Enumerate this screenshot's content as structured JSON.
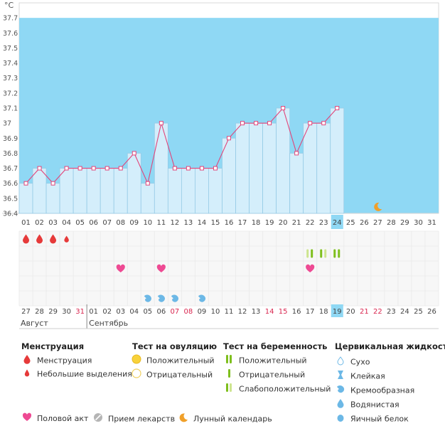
{
  "chart_data": {
    "type": "bar",
    "unit_label": "°C",
    "y_ticks": [
      "36.4",
      "36.5",
      "36.6",
      "36.7",
      "36.8",
      "36.9",
      "37",
      "37.1",
      "37.2",
      "37.3",
      "37.4",
      "37.5",
      "37.6",
      "37.7"
    ],
    "ylim": [
      36.4,
      37.8
    ],
    "coverline_range": [
      36.4,
      37.7
    ],
    "cycle_days": [
      "01",
      "02",
      "03",
      "04",
      "05",
      "06",
      "07",
      "08",
      "09",
      "10",
      "11",
      "12",
      "13",
      "14",
      "15",
      "16",
      "17",
      "18",
      "19",
      "20",
      "21",
      "22",
      "23",
      "24",
      "25",
      "26",
      "27",
      "28",
      "29",
      "30",
      "31"
    ],
    "temperatures": [
      36.6,
      36.7,
      36.6,
      36.7,
      36.7,
      36.7,
      36.7,
      36.7,
      36.8,
      36.6,
      37.0,
      36.7,
      36.7,
      36.7,
      36.7,
      36.9,
      37.0,
      37.0,
      37.0,
      37.1,
      36.8,
      37.0,
      37.0,
      37.1,
      null,
      null,
      null,
      null,
      null,
      null,
      null
    ],
    "current_day_index": 23,
    "dates": [
      {
        "label": "27",
        "weekend": false
      },
      {
        "label": "28",
        "weekend": false
      },
      {
        "label": "29",
        "weekend": false
      },
      {
        "label": "30",
        "weekend": false
      },
      {
        "label": "31",
        "weekend": true
      },
      {
        "label": "01",
        "weekend": false
      },
      {
        "label": "02",
        "weekend": false
      },
      {
        "label": "03",
        "weekend": false
      },
      {
        "label": "04",
        "weekend": false
      },
      {
        "label": "05",
        "weekend": false
      },
      {
        "label": "06",
        "weekend": false
      },
      {
        "label": "07",
        "weekend": true
      },
      {
        "label": "08",
        "weekend": true
      },
      {
        "label": "09",
        "weekend": false
      },
      {
        "label": "10",
        "weekend": false
      },
      {
        "label": "11",
        "weekend": false
      },
      {
        "label": "12",
        "weekend": false
      },
      {
        "label": "13",
        "weekend": false
      },
      {
        "label": "14",
        "weekend": true
      },
      {
        "label": "15",
        "weekend": true
      },
      {
        "label": "16",
        "weekend": false
      },
      {
        "label": "17",
        "weekend": false
      },
      {
        "label": "18",
        "weekend": false
      },
      {
        "label": "19",
        "weekend": false
      },
      {
        "label": "20",
        "weekend": false
      },
      {
        "label": "21",
        "weekend": true
      },
      {
        "label": "22",
        "weekend": true
      },
      {
        "label": "23",
        "weekend": false
      },
      {
        "label": "24",
        "weekend": false
      },
      {
        "label": "25",
        "weekend": false
      },
      {
        "label": "26",
        "weekend": false
      }
    ],
    "month_labels": [
      {
        "label": "Август",
        "start_index": 0
      },
      {
        "label": "Сентябрь",
        "start_index": 5
      }
    ],
    "menstruation": [
      {
        "index": 0,
        "type": "full"
      },
      {
        "index": 1,
        "type": "full"
      },
      {
        "index": 2,
        "type": "full"
      },
      {
        "index": 3,
        "type": "light"
      }
    ],
    "ovulation_tests": [],
    "pregnancy_tests": [
      {
        "index": 21,
        "types": [
          "weak",
          "positive"
        ]
      },
      {
        "index": 22,
        "types": [
          "positive",
          "weak"
        ]
      },
      {
        "index": 23,
        "types": [
          "positive",
          "positive"
        ]
      }
    ],
    "intercourse_days": [
      7,
      10,
      21
    ],
    "cervical_fluid": [
      {
        "index": 9,
        "type": "creamy"
      },
      {
        "index": 10,
        "type": "creamy"
      },
      {
        "index": 11,
        "type": "creamy"
      },
      {
        "index": 13,
        "type": "creamy"
      }
    ],
    "lunar_days": [
      26
    ]
  },
  "colors": {
    "sky": "#8fd8f4",
    "bar_fill": "#d4eefb",
    "bar_stroke": "#96cbe6",
    "line": "#e2457a",
    "heart": "#ee4a93",
    "drop_red": "#e63a3a",
    "fluid_blue": "#6cb8e6",
    "preg_positive": "#7ebf1d",
    "preg_weak": "#cde48f",
    "moon": "#f0a02a",
    "weekend": "#d9264f",
    "highlight": "#8fd8f4"
  },
  "legend": {
    "menstruation": {
      "title": "Менструация",
      "items": [
        {
          "icon": "drop-full",
          "label": "Менструация"
        },
        {
          "icon": "drop-light",
          "label": "Небольшие выделения"
        }
      ]
    },
    "ovulation": {
      "title": "Тест на овуляцию",
      "items": [
        {
          "icon": "circle-positive",
          "label": "Положительный"
        },
        {
          "icon": "circle-negative",
          "label": "Отрицательный"
        }
      ]
    },
    "pregnancy": {
      "title": "Тест на беременность",
      "items": [
        {
          "icon": "bars-positive",
          "label": "Положительный"
        },
        {
          "icon": "bar-negative",
          "label": "Отрицательный"
        },
        {
          "icon": "bars-weak",
          "label": "Слабоположительный"
        }
      ]
    },
    "cervical": {
      "title": "Цервикальная жидкость",
      "items": [
        {
          "icon": "drop-outline",
          "label": "Сухо"
        },
        {
          "icon": "hourglass",
          "label": "Клейкая"
        },
        {
          "icon": "drop-creamy",
          "label": "Кремообразная"
        },
        {
          "icon": "drop-watery",
          "label": "Водянистая"
        },
        {
          "icon": "drop-eggwhite",
          "label": "Яичный белок"
        }
      ]
    },
    "bottom": [
      {
        "icon": "heart",
        "label": "Половой акт"
      },
      {
        "icon": "pill",
        "label": "Прием лекарств"
      },
      {
        "icon": "moon",
        "label": "Лунный календарь"
      }
    ]
  }
}
